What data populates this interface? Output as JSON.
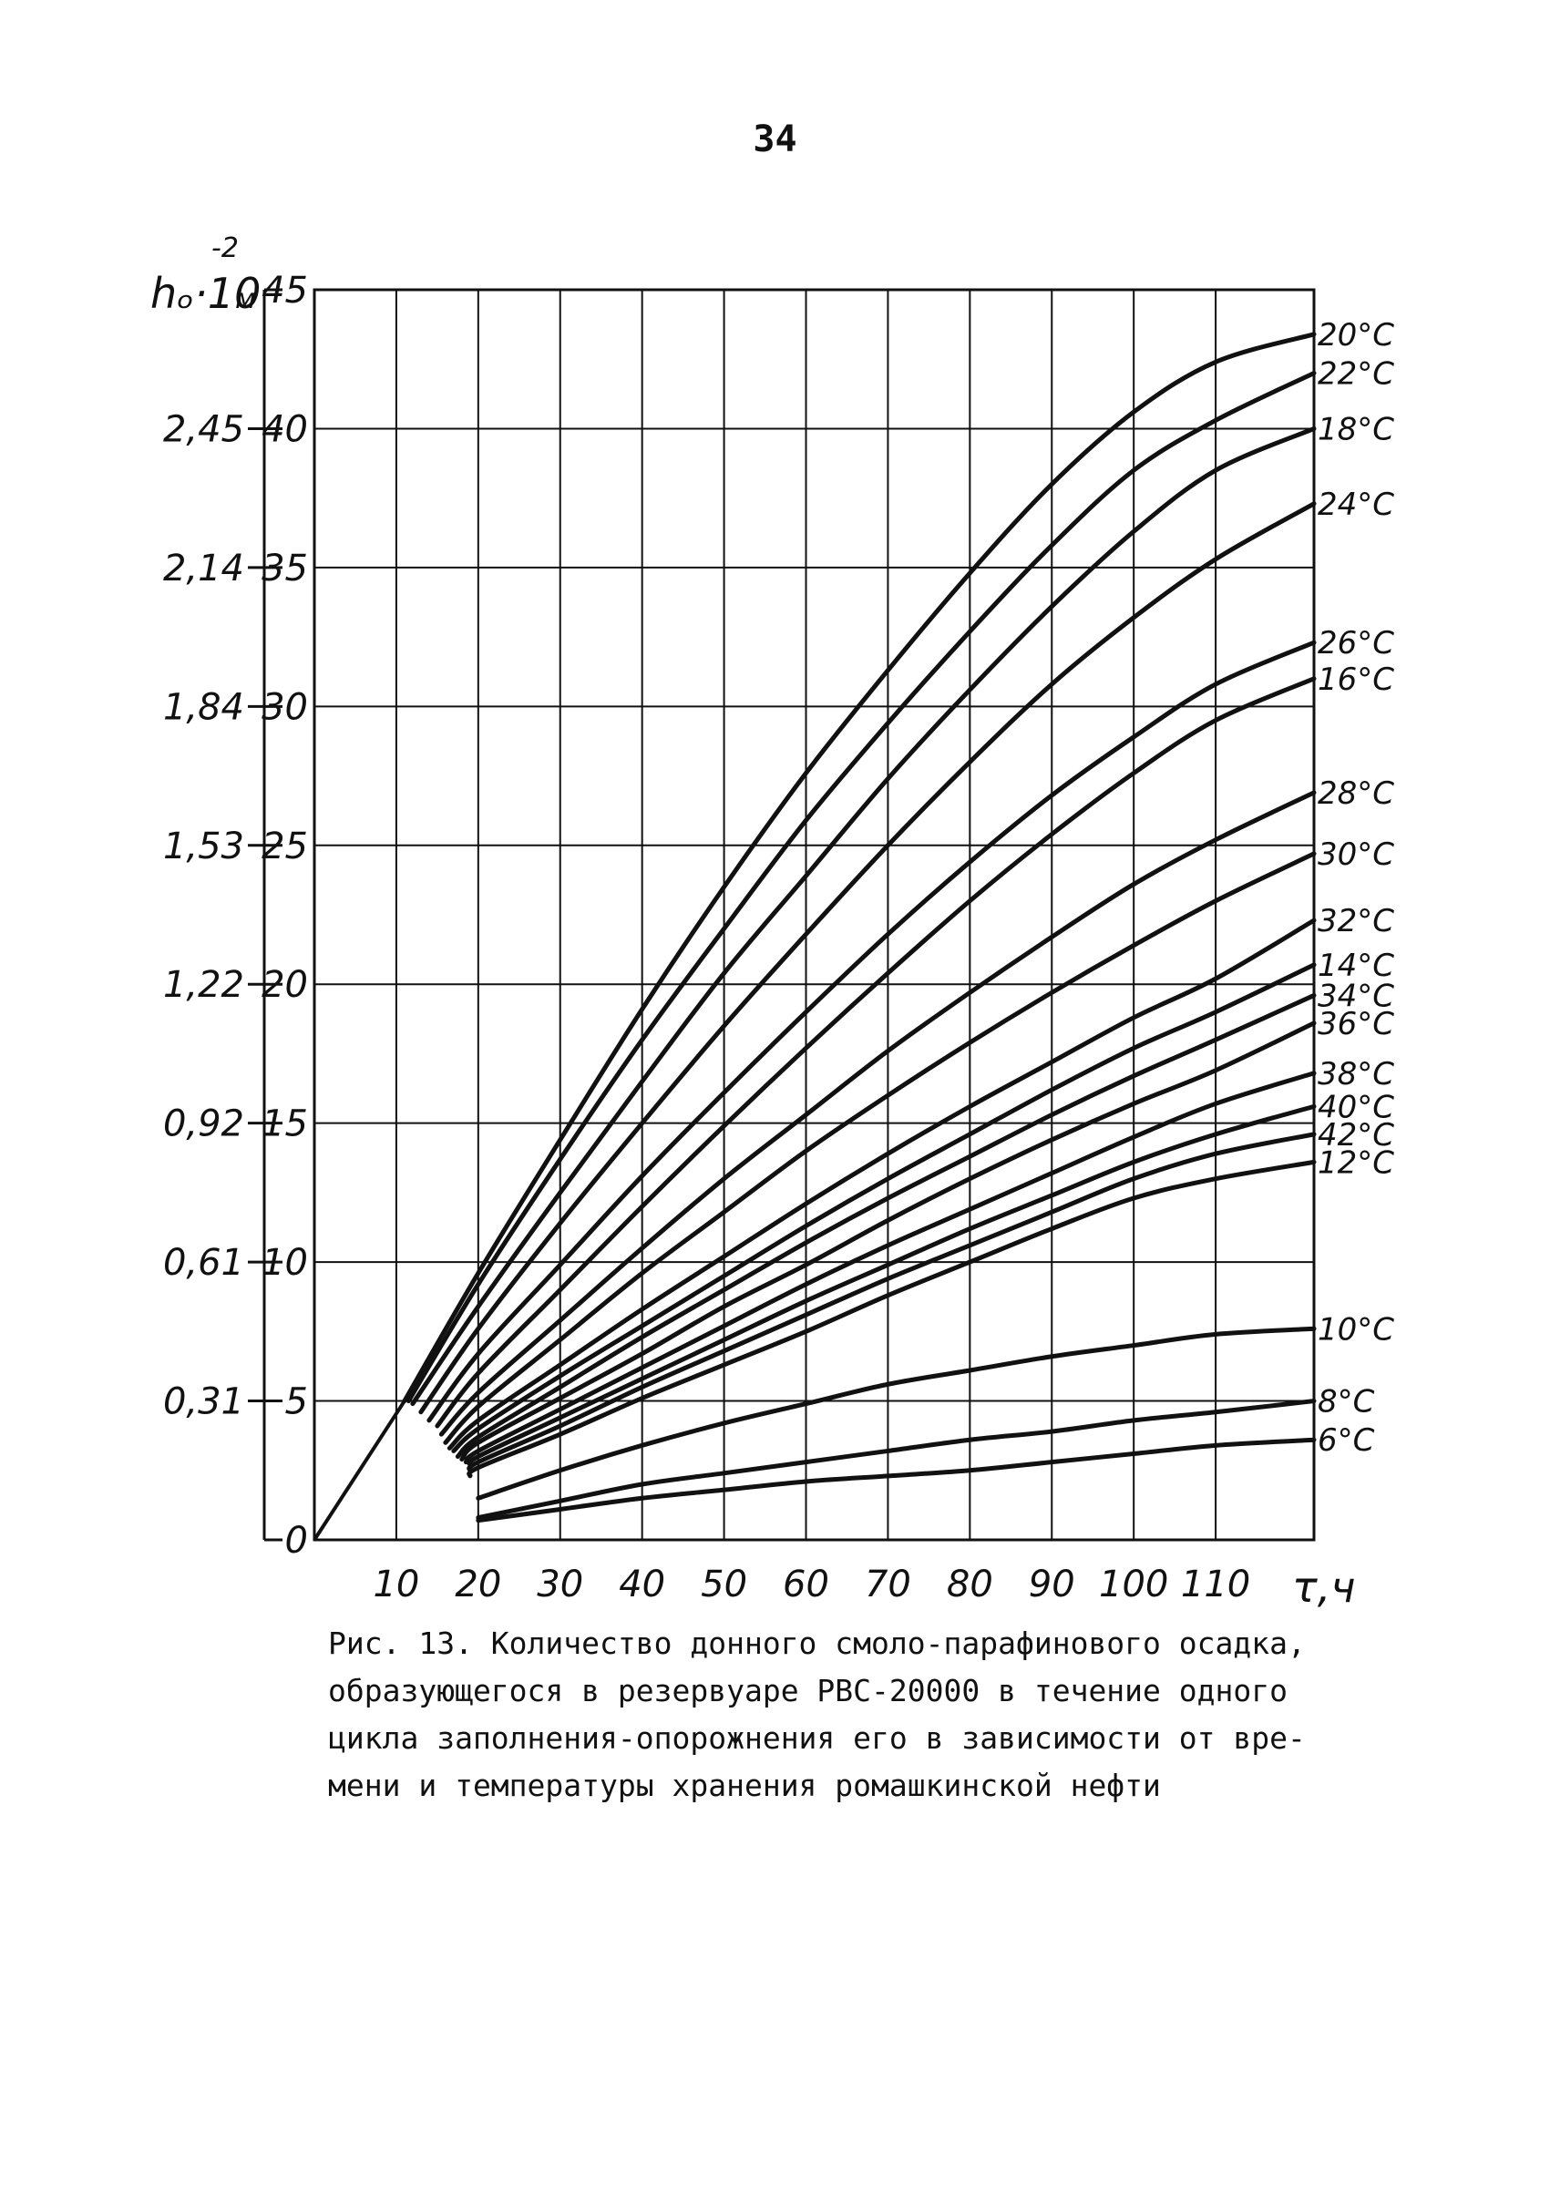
{
  "page_number": "34",
  "caption_lines": [
    "Рис. 13. Количество донного смоло-парафинового осадка,",
    "образующегося в резервуаре РВС-20000 в течение одного",
    "цикла заполнения-опорожнения его в зависимости от вре-",
    "мени и температуры хранения ромашкинской нефти"
  ],
  "chart_data": {
    "type": "line",
    "xlabel": "τ,ч",
    "ylabel": "hₒ·10",
    "ylabel_exponent": "-2",
    "ylabel_unit": "м",
    "xlim": [
      0,
      122
    ],
    "ylim": [
      0,
      45
    ],
    "x_ticks": [
      10,
      20,
      30,
      40,
      50,
      60,
      70,
      80,
      90,
      100,
      110
    ],
    "x_tick_labels": [
      "10",
      "20",
      "30",
      "40",
      "50",
      "60",
      "70",
      "80",
      "90",
      "100",
      "110"
    ],
    "y_ticks": [
      0,
      5,
      10,
      15,
      20,
      25,
      30,
      35,
      40,
      45
    ],
    "y_tick_labels": [
      "0",
      "5",
      "10",
      "15",
      "20",
      "25",
      "30",
      "35",
      "40",
      "45"
    ],
    "y2_ticks": [
      5,
      10,
      15,
      20,
      25,
      30,
      35,
      40
    ],
    "y2_tick_labels": [
      "0,31",
      "0,61",
      "0,92",
      "1,22",
      "1,53",
      "1,84",
      "2,14",
      "2,45"
    ],
    "grid": true,
    "line_color": "#111111",
    "initial_segment": {
      "x": [
        0,
        11
      ],
      "y": [
        0,
        5
      ]
    },
    "series": [
      {
        "name": "20°C",
        "x": [
          11,
          20,
          30,
          40,
          50,
          60,
          70,
          80,
          90,
          100,
          110,
          122
        ],
        "y": [
          5,
          9.6,
          14.4,
          19.1,
          23.5,
          27.6,
          31.3,
          34.8,
          38.0,
          40.6,
          42.4,
          43.4
        ]
      },
      {
        "name": "22°C",
        "x": [
          11.5,
          20,
          30,
          40,
          50,
          60,
          70,
          80,
          90,
          100,
          110,
          122
        ],
        "y": [
          5,
          9.2,
          13.7,
          18.0,
          22.0,
          25.9,
          29.4,
          32.7,
          35.8,
          38.5,
          40.3,
          42.0
        ]
      },
      {
        "name": "18°C",
        "x": [
          12,
          20,
          30,
          40,
          50,
          60,
          70,
          80,
          90,
          100,
          110,
          122
        ],
        "y": [
          4.9,
          8.4,
          12.5,
          16.5,
          20.4,
          23.9,
          27.4,
          30.6,
          33.6,
          36.3,
          38.5,
          40.0
        ]
      },
      {
        "name": "24°C",
        "x": [
          13,
          20,
          30,
          40,
          50,
          60,
          70,
          80,
          90,
          100,
          110,
          122
        ],
        "y": [
          4.6,
          7.6,
          11.4,
          15.0,
          18.5,
          21.8,
          25.0,
          28.0,
          30.8,
          33.2,
          35.3,
          37.3
        ]
      },
      {
        "name": "26°C",
        "x": [
          14,
          20,
          30,
          40,
          50,
          60,
          70,
          80,
          90,
          100,
          110,
          122
        ],
        "y": [
          4.3,
          6.7,
          9.9,
          13.1,
          16.1,
          19.0,
          21.8,
          24.4,
          26.8,
          28.9,
          30.8,
          32.3
        ]
      },
      {
        "name": "16°C",
        "x": [
          15,
          20,
          30,
          40,
          50,
          60,
          70,
          80,
          90,
          100,
          110,
          122
        ],
        "y": [
          4.1,
          6.0,
          9.0,
          12.0,
          14.9,
          17.7,
          20.4,
          23.0,
          25.4,
          27.6,
          29.5,
          31.0
        ]
      },
      {
        "name": "28°C",
        "x": [
          15.5,
          20,
          30,
          40,
          50,
          60,
          70,
          80,
          90,
          100,
          110,
          122
        ],
        "y": [
          3.8,
          5.3,
          7.9,
          10.5,
          13.0,
          15.3,
          17.6,
          19.7,
          21.7,
          23.6,
          25.2,
          26.9
        ]
      },
      {
        "name": "30°C",
        "x": [
          16,
          20,
          30,
          40,
          50,
          60,
          70,
          80,
          90,
          100,
          110,
          122
        ],
        "y": [
          3.5,
          4.8,
          7.2,
          9.6,
          11.8,
          14.0,
          16.0,
          17.9,
          19.7,
          21.4,
          23.0,
          24.7
        ]
      },
      {
        "name": "32°C",
        "x": [
          16.5,
          20,
          30,
          40,
          50,
          60,
          70,
          80,
          90,
          100,
          110,
          122
        ],
        "y": [
          3.3,
          4.3,
          6.3,
          8.3,
          10.2,
          12.1,
          13.9,
          15.6,
          17.2,
          18.8,
          20.2,
          22.3
        ]
      },
      {
        "name": "14°C",
        "x": [
          17,
          20,
          30,
          40,
          50,
          60,
          70,
          80,
          90,
          100,
          110,
          122
        ],
        "y": [
          3.2,
          4.0,
          5.9,
          7.7,
          9.5,
          11.3,
          13.0,
          14.6,
          16.2,
          17.7,
          19.0,
          20.7
        ]
      },
      {
        "name": "34°C",
        "x": [
          17.5,
          20,
          30,
          40,
          50,
          60,
          70,
          80,
          90,
          100,
          110,
          122
        ],
        "y": [
          3.0,
          3.7,
          5.5,
          7.3,
          9.0,
          10.7,
          12.3,
          13.8,
          15.3,
          16.7,
          18.0,
          19.6
        ]
      },
      {
        "name": "36°C",
        "x": [
          18,
          20,
          30,
          40,
          50,
          60,
          70,
          80,
          90,
          100,
          110,
          122
        ],
        "y": [
          2.9,
          3.5,
          5.1,
          6.7,
          8.4,
          9.9,
          11.5,
          13.0,
          14.4,
          15.7,
          16.9,
          18.6
        ]
      },
      {
        "name": "38°C",
        "x": [
          18.5,
          20,
          30,
          40,
          50,
          60,
          70,
          80,
          90,
          100,
          110,
          122
        ],
        "y": [
          2.8,
          3.2,
          4.7,
          6.2,
          7.7,
          9.2,
          10.6,
          11.9,
          13.2,
          14.5,
          15.7,
          16.8
        ]
      },
      {
        "name": "40°C",
        "x": [
          19,
          20,
          30,
          40,
          50,
          60,
          70,
          80,
          90,
          100,
          110,
          122
        ],
        "y": [
          2.7,
          3.0,
          4.4,
          5.8,
          7.2,
          8.6,
          9.9,
          11.2,
          12.4,
          13.6,
          14.6,
          15.6
        ]
      },
      {
        "name": "42°C",
        "x": [
          19,
          20,
          30,
          40,
          50,
          60,
          70,
          80,
          90,
          100,
          110,
          122
        ],
        "y": [
          2.5,
          2.8,
          4.1,
          5.5,
          6.8,
          8.1,
          9.4,
          10.6,
          11.8,
          13.0,
          13.9,
          14.6
        ]
      },
      {
        "name": "12°C",
        "x": [
          19,
          20,
          30,
          40,
          50,
          60,
          70,
          80,
          90,
          100,
          110,
          122
        ],
        "y": [
          2.3,
          2.6,
          3.8,
          5.1,
          6.3,
          7.5,
          8.8,
          10.0,
          11.2,
          12.3,
          13.0,
          13.6
        ]
      },
      {
        "name": "10°C",
        "x": [
          20,
          30,
          40,
          50,
          60,
          70,
          80,
          90,
          100,
          110,
          122
        ],
        "y": [
          1.5,
          2.5,
          3.4,
          4.2,
          4.9,
          5.6,
          6.1,
          6.6,
          7.0,
          7.4,
          7.6
        ]
      },
      {
        "name": "8°C",
        "x": [
          20,
          30,
          40,
          50,
          60,
          70,
          80,
          90,
          100,
          110,
          122
        ],
        "y": [
          0.8,
          1.4,
          2.0,
          2.4,
          2.8,
          3.2,
          3.6,
          3.9,
          4.3,
          4.6,
          5.0
        ]
      },
      {
        "name": "6°C",
        "x": [
          20,
          30,
          40,
          50,
          60,
          70,
          80,
          90,
          100,
          110,
          122
        ],
        "y": [
          0.7,
          1.1,
          1.5,
          1.8,
          2.1,
          2.3,
          2.5,
          2.8,
          3.1,
          3.4,
          3.6
        ]
      }
    ]
  }
}
